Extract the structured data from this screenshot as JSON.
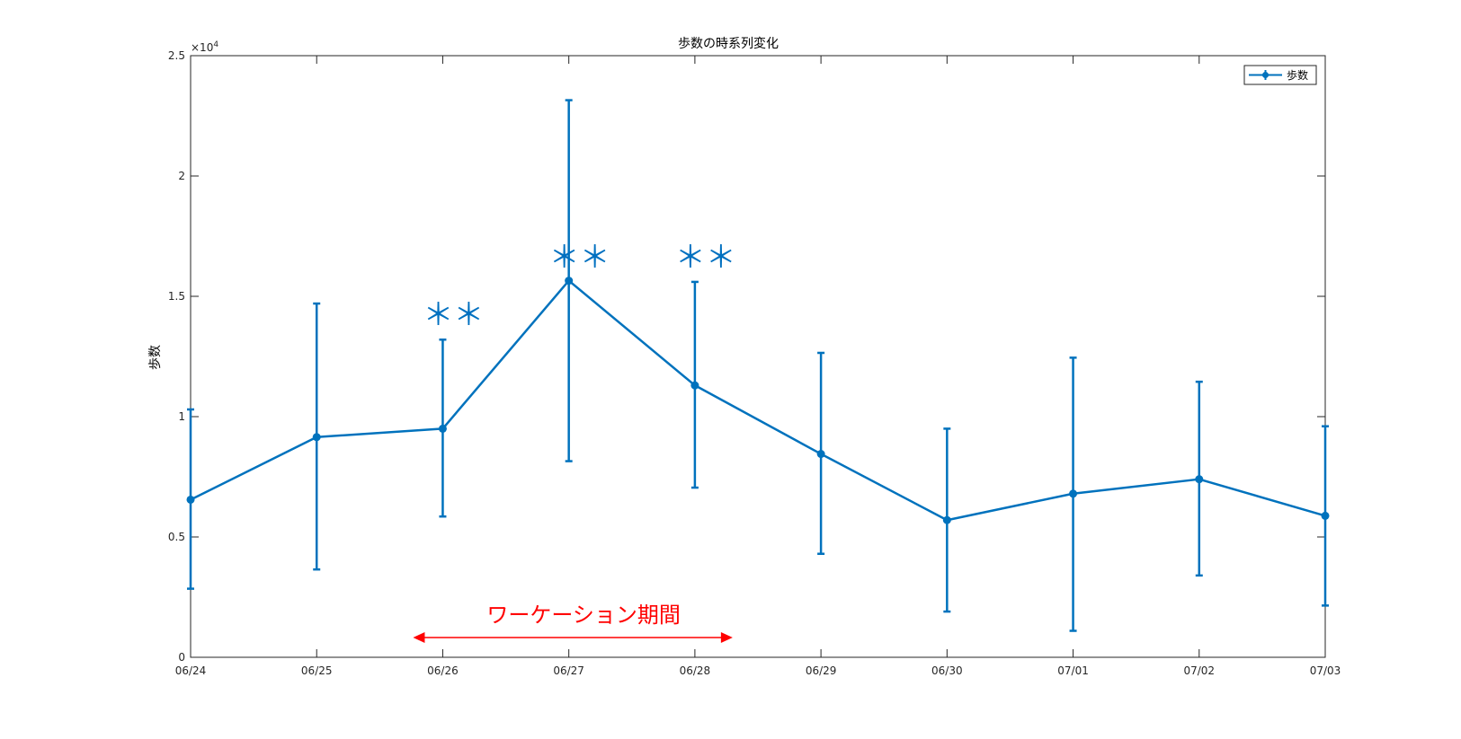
{
  "chart_data": {
    "type": "line",
    "title": "歩数の時系列変化",
    "xlabel": "",
    "ylabel": "歩数",
    "y_exponent_label": "×10",
    "y_exponent_power": "4",
    "categories": [
      "06/24",
      "06/25",
      "06/26",
      "06/27",
      "06/28",
      "06/29",
      "06/30",
      "07/01",
      "07/02",
      "07/03"
    ],
    "ylim": [
      0,
      25000
    ],
    "yticks": [
      0,
      5000,
      10000,
      15000,
      20000,
      25000
    ],
    "ytick_labels": [
      "0",
      "0.5",
      "1",
      "1.5",
      "2",
      "2.5"
    ],
    "grid": false,
    "legend_position": "top-right",
    "series": [
      {
        "name": "歩数",
        "color": "#0072bd",
        "values": [
          6550,
          9150,
          9500,
          15650,
          11300,
          8450,
          5700,
          6800,
          7400,
          5880
        ],
        "error_low": [
          2850,
          3650,
          5850,
          8150,
          7050,
          4300,
          1900,
          1100,
          3400,
          2150
        ],
        "error_high": [
          10300,
          14700,
          13200,
          23150,
          15600,
          12650,
          9500,
          12450,
          11450,
          9600
        ]
      }
    ],
    "annotations": [
      {
        "text": "＊＊",
        "category": "06/26",
        "y": 13800,
        "color": "#0070c0"
      },
      {
        "text": "＊＊",
        "category": "06/27",
        "y": 16200,
        "color": "#0070c0"
      },
      {
        "text": "＊＊",
        "category": "06/28",
        "y": 16200,
        "color": "#0070c0"
      }
    ],
    "range_annotation": {
      "text": "ワーケーション期間",
      "from_category": "06/26",
      "to_category": "06/28",
      "color": "#ff0000"
    }
  }
}
